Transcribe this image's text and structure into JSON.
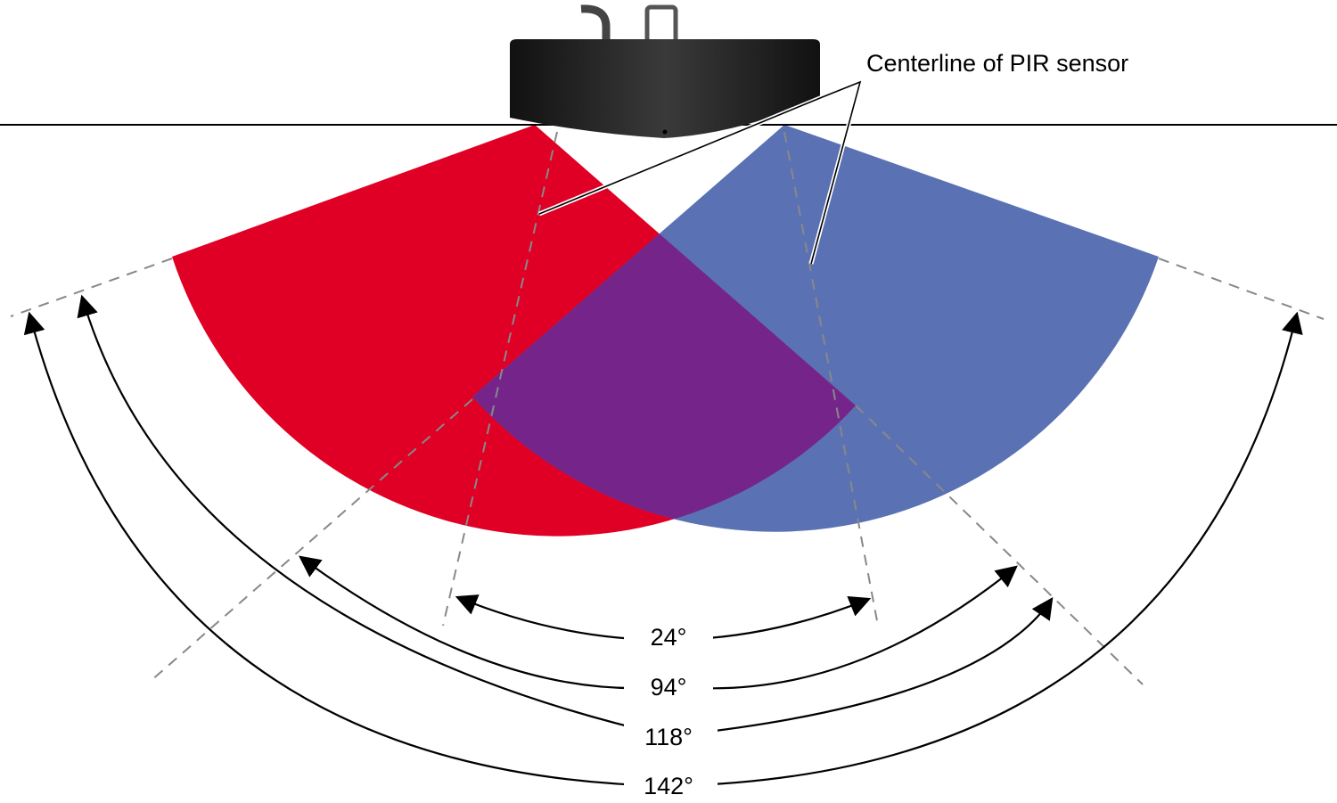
{
  "callout": "Centerline of PIR sensor",
  "angles": [
    {
      "label": "24°"
    },
    {
      "label": "94°"
    },
    {
      "label": "118°"
    },
    {
      "label": "142°"
    }
  ]
}
